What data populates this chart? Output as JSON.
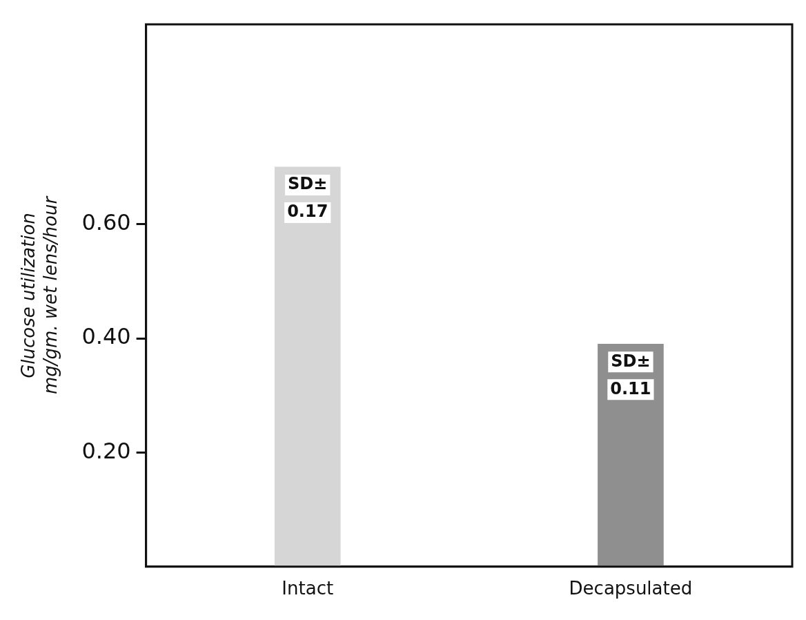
{
  "chart_data": {
    "type": "bar",
    "ylabel": "Glucose utilization\nmg/gm. wet lens/hour",
    "categories": [
      "Intact",
      "Decapsulated"
    ],
    "values": [
      0.7,
      0.39
    ],
    "colors": [
      "#d6d6d6",
      "#8f8f8f"
    ],
    "ylim": [
      0,
      0.95
    ],
    "yticks": [
      {
        "value": 0.2,
        "label": "0.20"
      },
      {
        "value": 0.4,
        "label": "0.40"
      },
      {
        "value": 0.6,
        "label": "0.60"
      }
    ],
    "grid": false,
    "legend": false,
    "annotations": [
      "SD±",
      "0.17",
      "SD±",
      "0.11"
    ]
  }
}
